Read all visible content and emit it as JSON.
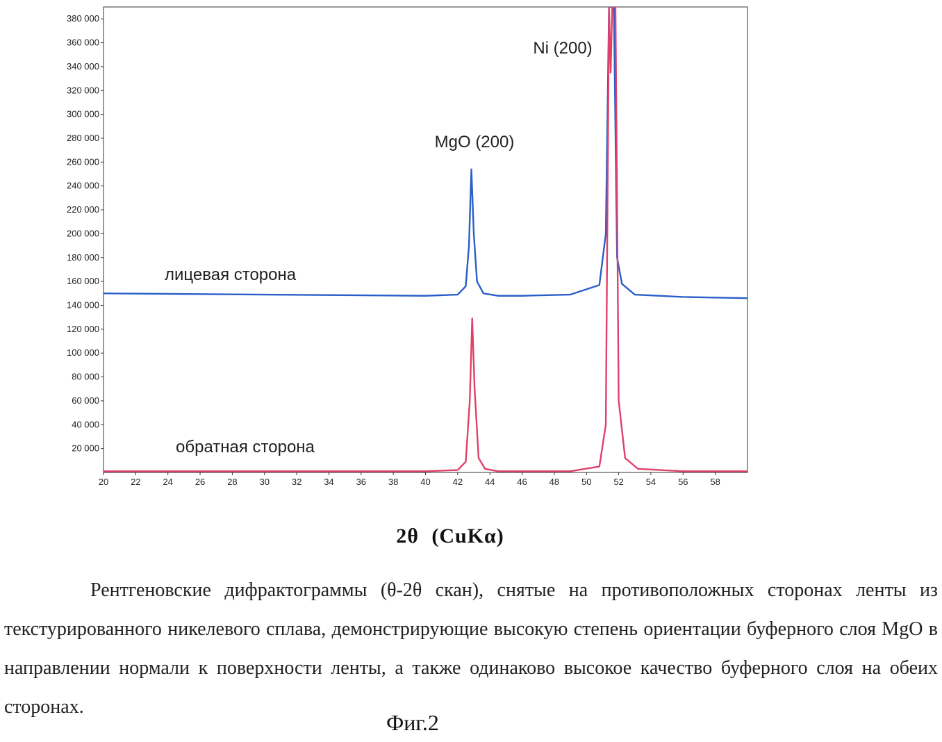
{
  "chart_data": {
    "type": "line",
    "xlabel": "2θ   (CuKα)",
    "ylabel": "",
    "xlim": [
      20,
      60
    ],
    "ylim": [
      0,
      390000
    ],
    "x_ticks": [
      "20",
      "22",
      "24",
      "26",
      "28",
      "30",
      "32",
      "34",
      "36",
      "38",
      "40",
      "42",
      "44",
      "46",
      "48",
      "50",
      "52",
      "54",
      "56",
      "58"
    ],
    "y_ticks": [
      "20 000",
      "40 000",
      "60 000",
      "80 000",
      "100 000",
      "120 000",
      "140 000",
      "160 000",
      "180 000",
      "200 000",
      "220 000",
      "240 000",
      "260 000",
      "280 000",
      "300 000",
      "320 000",
      "340 000",
      "360 000",
      "380 000"
    ],
    "grid": false,
    "series": [
      {
        "name": "лицевая сторона",
        "color": "#2a5fc8",
        "x": [
          20,
          30,
          40,
          42.0,
          42.5,
          42.7,
          42.85,
          43.0,
          43.2,
          43.6,
          44.5,
          46,
          49,
          50.8,
          51.2,
          51.4,
          51.55,
          51.7,
          51.9,
          52.2,
          53,
          56,
          60
        ],
        "y": [
          150000,
          149000,
          148000,
          149000,
          156000,
          190000,
          254000,
          200000,
          160000,
          150000,
          148000,
          148000,
          149000,
          157000,
          200000,
          390000,
          390000,
          390000,
          180000,
          158000,
          149000,
          147000,
          146000
        ]
      },
      {
        "name": "обратная сторона",
        "color": "#e0406a",
        "x": [
          20,
          30,
          40,
          42.0,
          42.5,
          42.75,
          42.9,
          43.05,
          43.3,
          43.7,
          44.5,
          46,
          49,
          50.8,
          51.2,
          51.4,
          51.5,
          51.6,
          51.8,
          52.0,
          52.4,
          53.2,
          56,
          60
        ],
        "y": [
          1000,
          1000,
          1000,
          2000,
          9000,
          60000,
          129000,
          70000,
          12000,
          3000,
          1000,
          1000,
          1000,
          5000,
          40000,
          390000,
          335000,
          390000,
          390000,
          60000,
          12000,
          3000,
          1000,
          1000
        ]
      }
    ],
    "annotations": [
      {
        "text": "Ni (200)",
        "x": 51.5
      },
      {
        "text": "MgO (200)",
        "x": 43.0
      },
      {
        "text": "лицевая сторона",
        "series": 0
      },
      {
        "text": "обратная сторона",
        "series": 1
      }
    ]
  },
  "caption": "Рентгеновские дифрактограммы (θ-2θ скан), снятые на противоположных сторонах ленты из текстурированного никелевого сплава, демонстрирующие высокую степень ориентации буферного слоя  MgO в направлении нормали к поверхности ленты, а также одинаково высокое качество буферного слоя на обеих сторонах.",
  "figure_label": "Фиг.2"
}
